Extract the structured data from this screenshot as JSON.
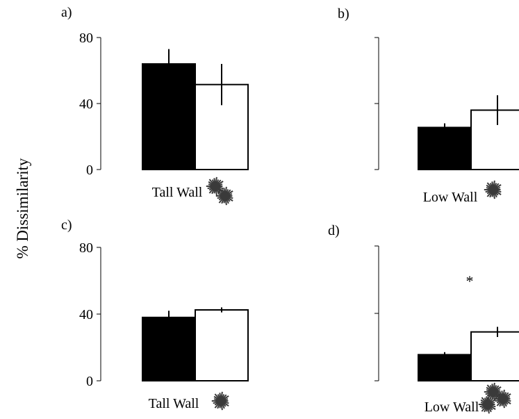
{
  "figure": {
    "ylabel": "% Dissimilarity",
    "colors": {
      "filled": "#000000",
      "open": "#ffffff",
      "urchin": "#3a3a3a"
    },
    "urchin_icon": "sea-urchin-icon"
  },
  "chart_data": [
    {
      "panel_label": "a)",
      "type": "bar",
      "categories": [
        "Tall Wall"
      ],
      "series": [
        {
          "fill": "filled",
          "values": [
            64
          ],
          "error": [
            9
          ]
        },
        {
          "fill": "open",
          "values": [
            51.5
          ],
          "error": [
            12.5
          ]
        }
      ],
      "ylim": [
        0,
        80
      ],
      "yticks": [
        "0",
        "40",
        "80"
      ],
      "annotation": "",
      "urchin_count": 2
    },
    {
      "panel_label": "b)",
      "type": "bar",
      "categories": [
        "Low Wall"
      ],
      "series": [
        {
          "fill": "filled",
          "values": [
            25.5
          ],
          "error": [
            2.5
          ]
        },
        {
          "fill": "open",
          "values": [
            36
          ],
          "error": [
            9
          ]
        }
      ],
      "ylim": [
        0,
        80
      ],
      "yticks": [],
      "annotation": "",
      "urchin_count": 1
    },
    {
      "panel_label": "c)",
      "type": "bar",
      "categories": [
        "Tall Wall"
      ],
      "series": [
        {
          "fill": "filled",
          "values": [
            38
          ],
          "error": [
            4
          ]
        },
        {
          "fill": "open",
          "values": [
            42.5
          ],
          "error": [
            1.5
          ]
        }
      ],
      "ylim": [
        0,
        80
      ],
      "yticks": [
        "0",
        "40",
        "80"
      ],
      "annotation": "",
      "urchin_count": 1
    },
    {
      "panel_label": "d)",
      "type": "bar",
      "categories": [
        "Low Wall"
      ],
      "series": [
        {
          "fill": "filled",
          "values": [
            15.5
          ],
          "error": [
            1.5
          ]
        },
        {
          "fill": "open",
          "values": [
            29
          ],
          "error": [
            3
          ]
        }
      ],
      "ylim": [
        0,
        80
      ],
      "yticks": [],
      "annotation": "*",
      "urchin_count": 3
    }
  ]
}
